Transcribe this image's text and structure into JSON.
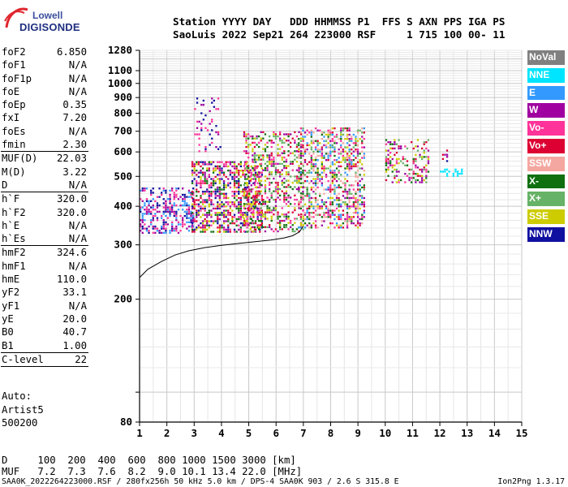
{
  "logo": {
    "top": "Lowell",
    "bottom": "DIGISONDE"
  },
  "header": {
    "line1": "Station YYYY DAY   DDD HHMMSS P1  FFS S AXN PPS IGA PS",
    "line2": "SaoLuis 2022 Sep21 264 223000 RSF     1 715 100 00- 11"
  },
  "params": [
    {
      "name": "foF2",
      "value": "6.850"
    },
    {
      "name": "foF1",
      "value": "N/A"
    },
    {
      "name": "foF1p",
      "value": "N/A"
    },
    {
      "name": "foE",
      "value": "N/A"
    },
    {
      "name": "foEp",
      "value": "0.35"
    },
    {
      "name": "fxI",
      "value": "7.20"
    },
    {
      "name": "foEs",
      "value": "N/A"
    },
    {
      "name": "fmin",
      "value": "2.30",
      "sep_after": true
    },
    {
      "name": "MUF(D)",
      "value": "22.03"
    },
    {
      "name": "M(D)",
      "value": "3.22"
    },
    {
      "name": "D",
      "value": "N/A",
      "sep_after": true
    },
    {
      "name": "h`F",
      "value": "320.0"
    },
    {
      "name": "h`F2",
      "value": "320.0"
    },
    {
      "name": "h`E",
      "value": "N/A"
    },
    {
      "name": "h`Es",
      "value": "N/A",
      "sep_after": true
    },
    {
      "name": "hmF2",
      "value": "324.6"
    },
    {
      "name": "hmF1",
      "value": "N/A"
    },
    {
      "name": "hmE",
      "value": "110.0"
    },
    {
      "name": "yF2",
      "value": "33.1"
    },
    {
      "name": "yF1",
      "value": "N/A"
    },
    {
      "name": "yE",
      "value": "20.0"
    },
    {
      "name": "B0",
      "value": "40.7"
    },
    {
      "name": "B1",
      "value": "1.00",
      "sep_after": true
    },
    {
      "name": "C-level",
      "value": "22",
      "sep_after": true
    }
  ],
  "autoscaling": {
    "line1": "Auto:",
    "line2": "Artist5",
    "line3": "500200"
  },
  "legend": [
    {
      "label": "NoVal",
      "color": "#808080"
    },
    {
      "label": "NNE",
      "color": "#00e5ff"
    },
    {
      "label": "E",
      "color": "#3399ff"
    },
    {
      "label": "W",
      "color": "#a000a0"
    },
    {
      "label": "Vo-",
      "color": "#ff3399"
    },
    {
      "label": "Vo+",
      "color": "#dd0033"
    },
    {
      "label": "SSW",
      "color": "#f4a7a0"
    },
    {
      "label": "X-",
      "color": "#107010"
    },
    {
      "label": "X+",
      "color": "#66b266"
    },
    {
      "label": "SSE",
      "color": "#cccc00"
    },
    {
      "label": "NNW",
      "color": "#1010a0"
    }
  ],
  "muf_table": {
    "d_line": "D     100  200  400  600  800 1000 1500 3000 [km]",
    "muf_line": "MUF   7.2  7.3  7.6  8.2  9.0 10.1 13.4 22.0 [MHz]"
  },
  "footer": {
    "left": "SAA0K_2022264223000.RSF / 280fx256h 50 kHz 5.0 km / DPS-4 SAA0K 903 / 2.6 S 315.8 E",
    "right": "Ion2Png 1.3.17"
  },
  "chart_data": {
    "type": "scatter",
    "title": "",
    "xlabel": "",
    "ylabel": "",
    "x_unit": "MHz",
    "y_unit": "km",
    "xlim": [
      1,
      15
    ],
    "x_ticks": [
      1,
      2,
      3,
      4,
      5,
      6,
      7,
      8,
      9,
      10,
      11,
      12,
      13,
      14,
      15
    ],
    "y_scale": "log",
    "ylim": [
      80,
      1280
    ],
    "y_ticks": [
      80,
      100,
      200,
      300,
      400,
      500,
      600,
      700,
      800,
      900,
      1000,
      1100,
      1280
    ],
    "y_tick_labels": [
      "80",
      "",
      "200",
      "300",
      "400",
      "500",
      "600",
      "700",
      "800",
      "900",
      "1000",
      "1100",
      "1280"
    ],
    "grid": true,
    "legend_position": "right",
    "echo_clusters": [
      {
        "x": [
          1.0,
          3.0
        ],
        "y": [
          330,
          460
        ],
        "colors": [
          "#1010a0",
          "#a000a0",
          "#3399ff",
          "#ff3399"
        ],
        "density": 0.45
      },
      {
        "x": [
          2.9,
          5.5
        ],
        "y": [
          330,
          560
        ],
        "colors": [
          "#a000a0",
          "#1010a0",
          "#ff3399",
          "#dd0033",
          "#107010",
          "#cccc00"
        ],
        "density": 0.55
      },
      {
        "x": [
          3.0,
          4.0
        ],
        "y": [
          600,
          900
        ],
        "colors": [
          "#a000a0",
          "#1010a0",
          "#ff3399"
        ],
        "density": 0.15
      },
      {
        "x": [
          4.8,
          7.0
        ],
        "y": [
          330,
          700
        ],
        "colors": [
          "#ff3399",
          "#dd0033",
          "#a000a0",
          "#107010",
          "#66b266",
          "#cccc00"
        ],
        "density": 0.35
      },
      {
        "x": [
          6.8,
          9.2
        ],
        "y": [
          340,
          720
        ],
        "colors": [
          "#ff3399",
          "#dd0033",
          "#f4a7a0",
          "#a000a0",
          "#107010",
          "#66b266",
          "#cccc00",
          "#3399ff"
        ],
        "density": 0.42
      },
      {
        "x": [
          10.0,
          11.6
        ],
        "y": [
          480,
          660
        ],
        "colors": [
          "#107010",
          "#66b266",
          "#cccc00",
          "#ff3399",
          "#a000a0",
          "#dd0033"
        ],
        "density": 0.35
      },
      {
        "x": [
          12.0,
          12.8
        ],
        "y": [
          500,
          530
        ],
        "colors": [
          "#00e5ff"
        ],
        "density": 0.4
      },
      {
        "x": [
          12.0,
          12.3
        ],
        "y": [
          560,
          620
        ],
        "colors": [
          "#a000a0",
          "#dd0033",
          "#1010a0"
        ],
        "density": 0.3
      }
    ],
    "trace": {
      "name": "",
      "x": [
        1.0,
        1.3,
        1.8,
        2.3,
        2.8,
        3.4,
        4.0,
        4.6,
        5.2,
        5.8,
        6.3,
        6.6,
        6.85,
        7.0
      ],
      "y": [
        235,
        250,
        265,
        278,
        287,
        294,
        299,
        303,
        307,
        311,
        316,
        321,
        330,
        345
      ]
    }
  }
}
